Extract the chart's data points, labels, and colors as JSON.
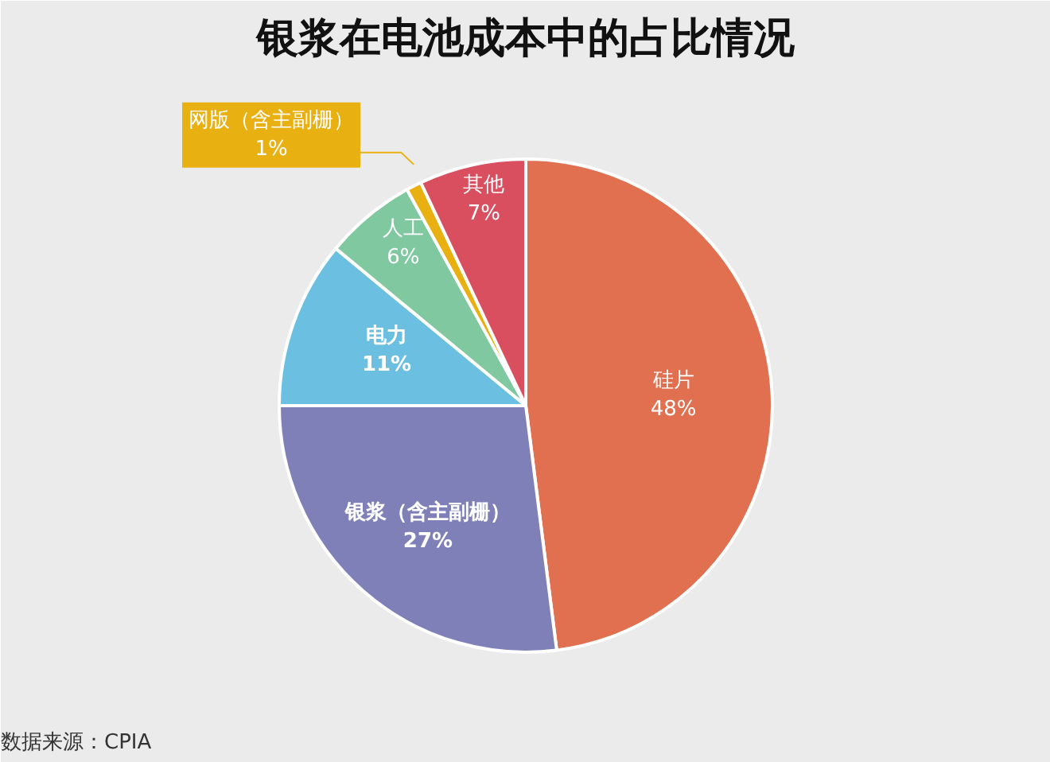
{
  "chart_data": {
    "type": "pie",
    "title": "银浆在电池成本中的占比情况",
    "categories": [
      "硅片",
      "银浆（含主副栅）",
      "电力",
      "人工",
      "网版（含主副栅）",
      "其他"
    ],
    "values": [
      48,
      27,
      11,
      6,
      1,
      7
    ],
    "colors": [
      "#e07050",
      "#8080b8",
      "#6bbfe0",
      "#7fc8a0",
      "#e8b010",
      "#d94f5f"
    ],
    "value_labels": [
      "48%",
      "27%",
      "11%",
      "6%",
      "1%",
      "7%"
    ],
    "annotations": [
      "数据来源：CPIA"
    ]
  }
}
